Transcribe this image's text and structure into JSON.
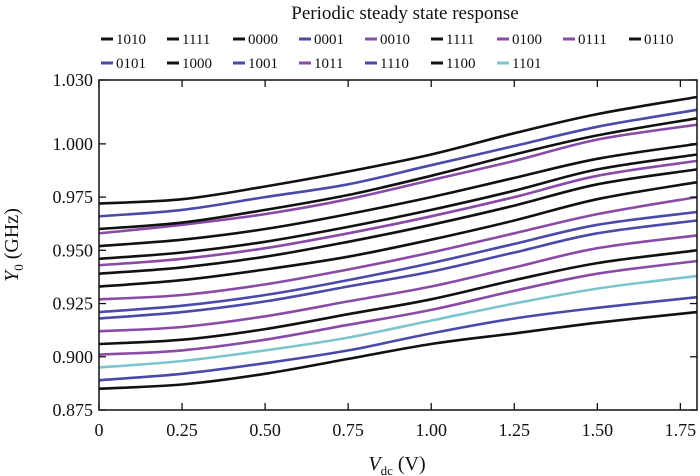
{
  "chart_data": {
    "type": "line",
    "title": "Periodic steady state response",
    "xlabel_main": "V",
    "xlabel_sub": "dc",
    "xlabel_unit": " (V)",
    "ylabel_main": "Y",
    "ylabel_sub": "0",
    "ylabel_unit": " (GHz)",
    "xlim": [
      0,
      1.8
    ],
    "ylim": [
      0.875,
      1.03
    ],
    "x_ticks": [
      0,
      0.25,
      0.5,
      0.75,
      1.0,
      1.25,
      1.5,
      1.75
    ],
    "x_tick_labels": [
      "0",
      "0.25",
      "0.50",
      "0.75",
      "1.00",
      "1.25",
      "1.50",
      "1.75"
    ],
    "y_ticks": [
      0.875,
      0.9,
      0.925,
      0.95,
      0.975,
      1.0,
      1.03
    ],
    "y_tick_labels": [
      "0.875",
      "0.900",
      "0.925",
      "0.950",
      "0.975",
      "1.000",
      "1.030"
    ],
    "grid": false,
    "legend_position": "top",
    "x": [
      0,
      0.25,
      0.5,
      0.75,
      1.0,
      1.25,
      1.5,
      1.8
    ],
    "series": [
      {
        "name": "1010",
        "color": "#111111",
        "values": [
          0.972,
          0.974,
          0.98,
          0.987,
          0.995,
          1.005,
          1.014,
          1.022
        ]
      },
      {
        "name": "1111",
        "color": "#111111",
        "values": [
          0.885,
          0.887,
          0.892,
          0.899,
          0.906,
          0.911,
          0.916,
          0.921
        ]
      },
      {
        "name": "0000",
        "color": "#111111",
        "values": [
          0.952,
          0.955,
          0.96,
          0.967,
          0.975,
          0.984,
          0.993,
          1.0
        ]
      },
      {
        "name": "0001",
        "color": "#4a4aa8",
        "values": [
          0.966,
          0.969,
          0.975,
          0.981,
          0.99,
          0.999,
          1.008,
          1.016
        ]
      },
      {
        "name": "0010",
        "color": "#8a4aa8",
        "values": [
          0.958,
          0.962,
          0.967,
          0.974,
          0.983,
          0.992,
          1.002,
          1.009
        ]
      },
      {
        "name": "1111",
        "color": "#111111",
        "values": [
          0.946,
          0.949,
          0.954,
          0.961,
          0.969,
          0.978,
          0.988,
          0.995
        ]
      },
      {
        "name": "0100",
        "color": "#8a4aa8",
        "values": [
          0.927,
          0.929,
          0.934,
          0.941,
          0.949,
          0.958,
          0.967,
          0.975
        ]
      },
      {
        "name": "0111",
        "color": "#8a4aa8",
        "values": [
          0.912,
          0.914,
          0.919,
          0.926,
          0.933,
          0.942,
          0.951,
          0.957
        ]
      },
      {
        "name": "0110",
        "color": "#111111",
        "values": [
          0.939,
          0.942,
          0.947,
          0.954,
          0.962,
          0.971,
          0.981,
          0.988
        ]
      },
      {
        "name": "0101",
        "color": "#4a4aa8",
        "values": [
          0.918,
          0.921,
          0.926,
          0.933,
          0.94,
          0.949,
          0.958,
          0.964
        ]
      },
      {
        "name": "1000",
        "color": "#111111",
        "values": [
          0.933,
          0.936,
          0.941,
          0.947,
          0.955,
          0.964,
          0.974,
          0.982
        ]
      },
      {
        "name": "1001",
        "color": "#4a4aa8",
        "values": [
          0.889,
          0.892,
          0.897,
          0.903,
          0.911,
          0.918,
          0.923,
          0.928
        ]
      },
      {
        "name": "1011",
        "color": "#8a4aa8",
        "values": [
          0.943,
          0.946,
          0.951,
          0.958,
          0.966,
          0.975,
          0.985,
          0.992
        ]
      },
      {
        "name": "1110",
        "color": "#4a4aa8",
        "values": [
          0.921,
          0.924,
          0.929,
          0.936,
          0.944,
          0.953,
          0.962,
          0.968
        ]
      },
      {
        "name": "1100",
        "color": "#111111",
        "values": [
          0.906,
          0.908,
          0.913,
          0.92,
          0.927,
          0.936,
          0.944,
          0.95
        ]
      },
      {
        "name": "1101",
        "color": "#7cc5cf",
        "values": [
          0.895,
          0.898,
          0.903,
          0.909,
          0.917,
          0.925,
          0.932,
          0.938
        ]
      },
      {
        "name": "",
        "color": "#111111",
        "values": [
          0.96,
          0.963,
          0.969,
          0.976,
          0.985,
          0.995,
          1.004,
          1.012
        ]
      },
      {
        "name": "",
        "color": "#8a4aa8",
        "values": [
          0.901,
          0.903,
          0.908,
          0.915,
          0.922,
          0.931,
          0.939,
          0.945
        ]
      }
    ]
  }
}
